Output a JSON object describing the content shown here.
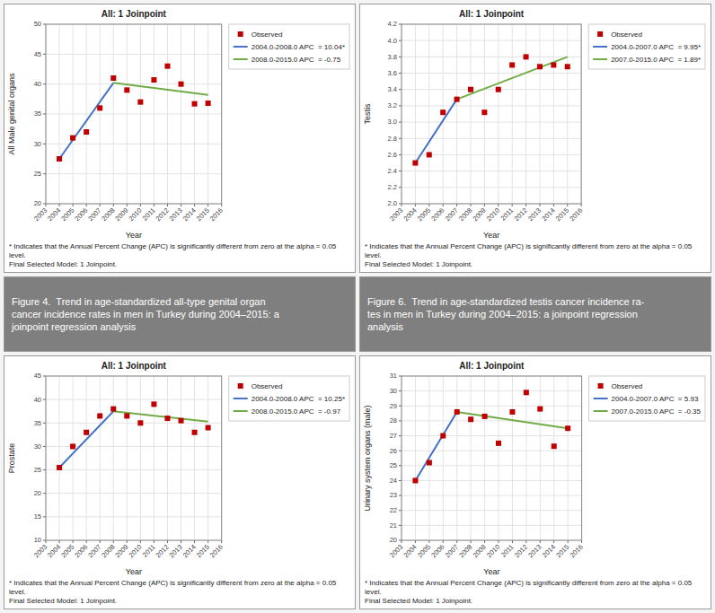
{
  "chart_data": [
    {
      "type": "line",
      "title": "All: 1 Joinpoint",
      "xlabel": "Year",
      "ylabel": "All Male genital organs",
      "xlim": [
        2003,
        2016
      ],
      "xticks": [
        2003,
        2004,
        2005,
        2006,
        2007,
        2008,
        2009,
        2010,
        2011,
        2012,
        2013,
        2014,
        2015,
        2016
      ],
      "ylim": [
        20,
        50
      ],
      "yticks": [
        20,
        25,
        30,
        35,
        40,
        45,
        50
      ],
      "grid": true,
      "legend": "right",
      "series": [
        {
          "name": "Observed",
          "type": "scatter",
          "marker": "square",
          "color": "#c00000",
          "x": [
            2004,
            2005,
            2006,
            2007,
            2008,
            2009,
            2010,
            2011,
            2012,
            2013,
            2014,
            2015
          ],
          "values": [
            27.5,
            31.0,
            32.0,
            36.0,
            41.0,
            39.0,
            37.0,
            40.7,
            43.0,
            40.0,
            36.7,
            36.8
          ]
        },
        {
          "name": "2004.0-2008.0 APC  = 10.04*",
          "type": "line",
          "color": "#4472c4",
          "x": [
            2004,
            2008
          ],
          "values": [
            27.5,
            40.2
          ]
        },
        {
          "name": "2008.0-2015.0 APC  = -0.75",
          "type": "line",
          "color": "#70ad47",
          "x": [
            2008,
            2015
          ],
          "values": [
            40.2,
            38.2
          ]
        }
      ],
      "annotations": [
        "* Indicates that the Annual Percent Change (APC) is significantly different from zero at the alpha = 0.05 level.\nFinal Selected Model: 1 Joinpoint.",
        "Figure 4.  Trend in age-standardized all-type genital organ\ncancer incidence rates in men in Turkey during 2004–2015: a\njoinpoint regression analysis"
      ]
    },
    {
      "type": "line",
      "title": "All: 1 Joinpoint",
      "xlabel": "Year",
      "ylabel": "Testis",
      "xlim": [
        2003,
        2016
      ],
      "xticks": [
        2003,
        2004,
        2005,
        2006,
        2007,
        2008,
        2009,
        2010,
        2011,
        2012,
        2013,
        2014,
        2015,
        2016
      ],
      "ylim": [
        2.0,
        4.2
      ],
      "yticks": [
        {
          "value": 2.0,
          "label": "2.0"
        },
        2.2,
        2.4,
        2.6,
        2.8,
        {
          "value": 3.0,
          "label": "3.0"
        },
        3.2,
        3.4,
        3.6,
        3.8,
        {
          "value": 4.0,
          "label": "4.0"
        },
        4.2
      ],
      "grid": true,
      "legend": "right",
      "series": [
        {
          "name": "Observed",
          "type": "scatter",
          "marker": "square",
          "color": "#c00000",
          "x": [
            2004,
            2005,
            2006,
            2007,
            2008,
            2009,
            2010,
            2011,
            2012,
            2013,
            2014,
            2015
          ],
          "values": [
            2.5,
            2.6,
            3.12,
            3.28,
            3.4,
            3.12,
            3.4,
            3.7,
            3.8,
            3.68,
            3.7,
            3.68
          ]
        },
        {
          "name": "2004.0-2007.0 APC  = 9.95*",
          "type": "line",
          "color": "#4472c4",
          "x": [
            2004,
            2007
          ],
          "values": [
            2.5,
            3.28
          ]
        },
        {
          "name": "2007.0-2015.0 APC  = 1.89*",
          "type": "line",
          "color": "#70ad47",
          "x": [
            2007,
            2015
          ],
          "values": [
            3.28,
            3.8
          ]
        }
      ],
      "annotations": [
        "* Indicates that the Annual Percent Change (APC) is significantly different from zero at the alpha = 0.05 level.\nFinal Selected Model: 1 Joinpoint.",
        "Figure 6.  Trend in age-standardized testis cancer incidence ra-\ntes in men in Turkey during 2004–2015: a joinpoint regression\nanalysis"
      ]
    },
    {
      "type": "line",
      "title": "All: 1 Joinpoint",
      "xlabel": "Year",
      "ylabel": "Prostate",
      "xlim": [
        2003,
        2016
      ],
      "xticks": [
        2003,
        2004,
        2005,
        2006,
        2007,
        2008,
        2009,
        2010,
        2011,
        2012,
        2013,
        2014,
        2015,
        2016
      ],
      "ylim": [
        10,
        45
      ],
      "yticks": [
        10,
        15,
        20,
        25,
        30,
        35,
        40,
        45
      ],
      "grid": true,
      "legend": "right",
      "series": [
        {
          "name": "Observed",
          "type": "scatter",
          "marker": "square",
          "color": "#c00000",
          "x": [
            2004,
            2005,
            2006,
            2007,
            2008,
            2009,
            2010,
            2011,
            2012,
            2013,
            2014,
            2015
          ],
          "values": [
            25.5,
            30.0,
            33.0,
            36.5,
            38.0,
            36.5,
            35.0,
            39.0,
            36.0,
            35.5,
            33.0,
            34.0
          ]
        },
        {
          "name": "2004.0-2008.0 APC  = 10.25*",
          "type": "line",
          "color": "#4472c4",
          "x": [
            2004,
            2008
          ],
          "values": [
            25.5,
            37.5
          ]
        },
        {
          "name": "2008.0-2015.0 APC  = -0.97",
          "type": "line",
          "color": "#70ad47",
          "x": [
            2008,
            2015
          ],
          "values": [
            37.5,
            35.3
          ]
        }
      ],
      "annotations": [
        "* Indicates that the Annual Percent Change (APC) is significantly different from zero at the alpha = 0.05 level.\nFinal Selected Model: 1 Joinpoint."
      ]
    },
    {
      "type": "line",
      "title": "All: 1 Joinpoint",
      "xlabel": "Year",
      "ylabel": "Urinary system organs (male)",
      "xlim": [
        2003,
        2016
      ],
      "xticks": [
        2003,
        2004,
        2005,
        2006,
        2007,
        2008,
        2009,
        2010,
        2011,
        2012,
        2013,
        2014,
        2015,
        2016
      ],
      "ylim": [
        20,
        31
      ],
      "yticks": [
        20,
        21,
        22,
        23,
        24,
        25,
        26,
        27,
        28,
        29,
        30,
        31
      ],
      "grid": true,
      "legend": "right",
      "series": [
        {
          "name": "Observed",
          "type": "scatter",
          "marker": "square",
          "color": "#c00000",
          "x": [
            2004,
            2005,
            2006,
            2007,
            2008,
            2009,
            2010,
            2011,
            2012,
            2013,
            2014,
            2015
          ],
          "values": [
            24.0,
            25.2,
            27.0,
            28.6,
            28.1,
            28.3,
            26.5,
            28.6,
            29.9,
            28.8,
            26.3,
            27.5
          ]
        },
        {
          "name": "2004.0-2007.0 APC  = 5.93",
          "type": "line",
          "color": "#4472c4",
          "x": [
            2004,
            2007
          ],
          "values": [
            24.0,
            28.6
          ]
        },
        {
          "name": "2007.0-2015.0 APC  = -0.35",
          "type": "line",
          "color": "#70ad47",
          "x": [
            2007,
            2015
          ],
          "values": [
            28.6,
            27.5
          ]
        }
      ],
      "annotations": [
        "* Indicates that the Annual Percent Change (APC) is significantly different from zero at the alpha = 0.05 level.\nFinal Selected Model: 1 Joinpoint."
      ]
    }
  ]
}
